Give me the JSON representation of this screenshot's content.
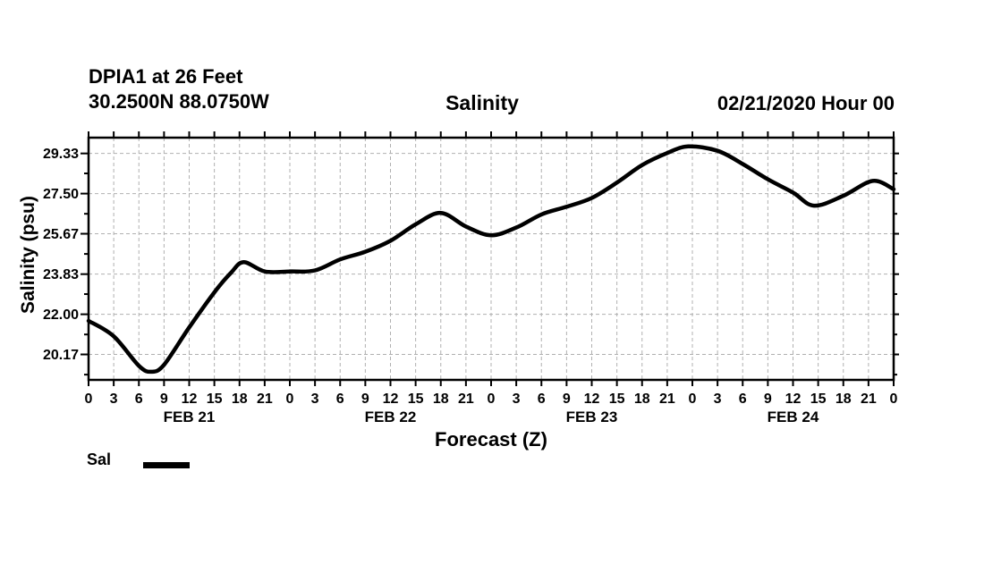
{
  "header": {
    "station_line1": "DPIA1 at 26 Feet",
    "station_line2": "30.2500N 88.0750W",
    "datetime": "02/21/2020 Hour 00"
  },
  "chart_data": {
    "type": "line",
    "title": "Salinity",
    "xlabel": "Forecast (Z)",
    "ylabel": "Salinity (psu)",
    "x_range_hours": [
      0,
      96
    ],
    "x_tick_step_hours": 3,
    "x_tick_labels": [
      "0",
      "3",
      "6",
      "9",
      "12",
      "15",
      "18",
      "21",
      "0",
      "3",
      "6",
      "9",
      "12",
      "15",
      "18",
      "21",
      "0",
      "3",
      "6",
      "9",
      "12",
      "15",
      "18",
      "21",
      "0",
      "3",
      "6",
      "9",
      "12",
      "15",
      "18",
      "21",
      "0"
    ],
    "x_day_labels": [
      {
        "label": "FEB 21",
        "hour": 12
      },
      {
        "label": "FEB 22",
        "hour": 36
      },
      {
        "label": "FEB 23",
        "hour": 60
      },
      {
        "label": "FEB 24",
        "hour": 84
      }
    ],
    "y_ticks": [
      20.17,
      22.0,
      23.83,
      25.67,
      27.5,
      29.33
    ],
    "y_tick_labels": [
      "20.17",
      "22.00",
      "23.83",
      "25.67",
      "27.50",
      "29.33"
    ],
    "y_minor_ticks": [
      19.25,
      21.08,
      22.92,
      24.75,
      26.58,
      28.42
    ],
    "ylim": [
      19.01,
      30.05
    ],
    "grid": true,
    "legend": {
      "label": "Sal",
      "position": "bottom-left"
    },
    "series": [
      {
        "name": "Sal",
        "color": "#000000",
        "points": [
          [
            0,
            21.7
          ],
          [
            3,
            21.0
          ],
          [
            6,
            19.65
          ],
          [
            7.5,
            19.38
          ],
          [
            9,
            19.7
          ],
          [
            12,
            21.4
          ],
          [
            15,
            23.0
          ],
          [
            17,
            23.9
          ],
          [
            18.5,
            24.38
          ],
          [
            21,
            23.95
          ],
          [
            24,
            23.95
          ],
          [
            27,
            24.0
          ],
          [
            30,
            24.5
          ],
          [
            33,
            24.85
          ],
          [
            36,
            25.35
          ],
          [
            39,
            26.1
          ],
          [
            42,
            26.62
          ],
          [
            45,
            26.0
          ],
          [
            48,
            25.6
          ],
          [
            51,
            25.95
          ],
          [
            54,
            26.55
          ],
          [
            57,
            26.9
          ],
          [
            60,
            27.3
          ],
          [
            63,
            28.0
          ],
          [
            66,
            28.8
          ],
          [
            69,
            29.35
          ],
          [
            71.5,
            29.65
          ],
          [
            75,
            29.45
          ],
          [
            78,
            28.85
          ],
          [
            81,
            28.15
          ],
          [
            84,
            27.55
          ],
          [
            86.5,
            26.95
          ],
          [
            90,
            27.4
          ],
          [
            93.5,
            28.08
          ],
          [
            96,
            27.7
          ]
        ]
      }
    ]
  },
  "colors": {
    "line": "#000000",
    "grid": "#b0b0b0",
    "frame": "#000000",
    "text": "#000000",
    "background": "#ffffff"
  }
}
